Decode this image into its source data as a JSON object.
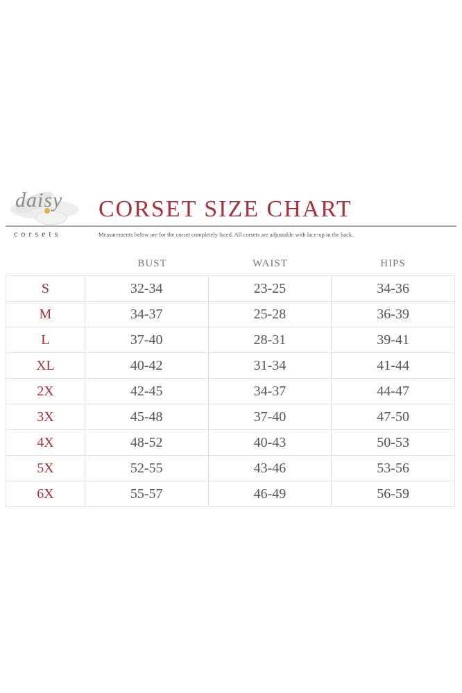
{
  "brand": {
    "script": "daisy",
    "sub": "corsets"
  },
  "title": "CORSET SIZE CHART",
  "note": "Measurements below are for the corset completely laced. All corsets are adjustable with lace-up in the back.",
  "colors": {
    "accent": "#a8323a",
    "text": "#555555",
    "grid": "#e2e2e2"
  },
  "headers": [
    "BUST",
    "WAIST",
    "HIPS"
  ],
  "rows": [
    {
      "size": "S",
      "bust": "32-34",
      "waist": "23-25",
      "hips": "34-36"
    },
    {
      "size": "M",
      "bust": "34-37",
      "waist": "25-28",
      "hips": "36-39"
    },
    {
      "size": "L",
      "bust": "37-40",
      "waist": "28-31",
      "hips": "39-41"
    },
    {
      "size": "XL",
      "bust": "40-42",
      "waist": "31-34",
      "hips": "41-44"
    },
    {
      "size": "2X",
      "bust": "42-45",
      "waist": "34-37",
      "hips": "44-47"
    },
    {
      "size": "3X",
      "bust": "45-48",
      "waist": "37-40",
      "hips": "47-50"
    },
    {
      "size": "4X",
      "bust": "48-52",
      "waist": "40-43",
      "hips": "50-53"
    },
    {
      "size": "5X",
      "bust": "52-55",
      "waist": "43-46",
      "hips": "53-56"
    },
    {
      "size": "6X",
      "bust": "55-57",
      "waist": "46-49",
      "hips": "56-59"
    }
  ]
}
